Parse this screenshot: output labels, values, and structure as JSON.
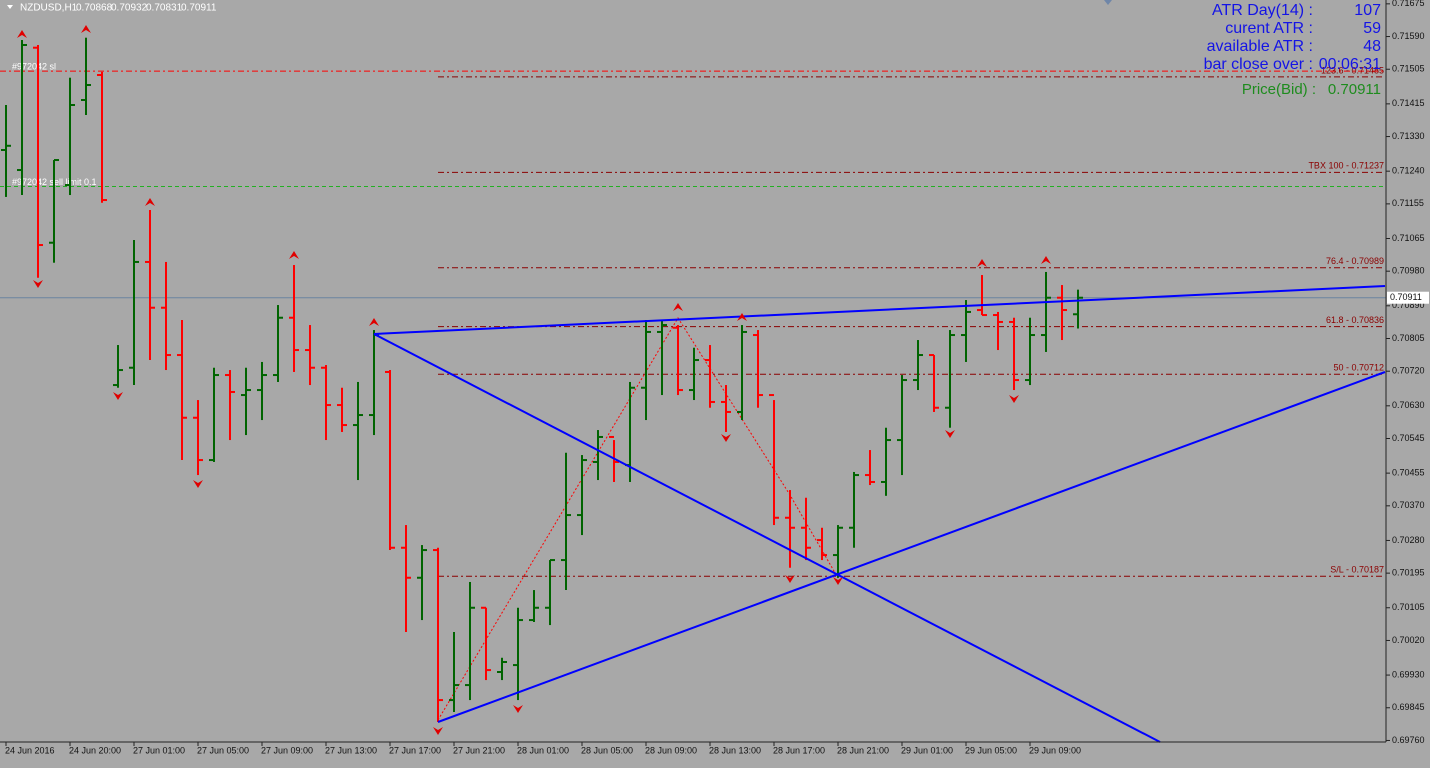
{
  "chart_data": {
    "type": "ohlc",
    "title": "NZDUSD,H1",
    "categories": [
      "24 Jun 2016",
      null,
      null,
      null,
      "24 Jun 20:00",
      null,
      null,
      null,
      "27 Jun 01:00",
      null,
      null,
      null,
      "27 Jun 05:00",
      null,
      null,
      null,
      "27 Jun 09:00",
      null,
      null,
      null,
      "27 Jun 13:00",
      null,
      null,
      null,
      "27 Jun 17:00",
      null,
      null,
      null,
      "27 Jun 21:00",
      null,
      null,
      null,
      "28 Jun 01:00",
      null,
      null,
      null,
      "28 Jun 05:00",
      null,
      null,
      null,
      "28 Jun 09:00",
      null,
      null,
      null,
      "28 Jun 13:00",
      null,
      null,
      null,
      "28 Jun 17:00",
      null,
      null,
      null,
      "28 Jun 21:00",
      null,
      null,
      null,
      "29 Jun 01:00",
      null,
      null,
      null,
      "29 Jun 05:00",
      null,
      null,
      null,
      "29 Jun 09:00",
      null,
      null,
      null
    ],
    "open": [
      0.71295,
      0.71243,
      0.71561,
      0.71054,
      0.71204,
      0.71425,
      0.7149,
      0.70684,
      0.70729,
      0.71004,
      0.70885,
      0.70762,
      0.70599,
      0.70489,
      0.7071,
      0.70658,
      0.70671,
      0.7071,
      0.70859,
      0.70775,
      0.70729,
      0.70632,
      0.7058,
      0.70606,
      0.70718,
      0.70261,
      0.70183,
      0.70255,
      0.69865,
      0.69904,
      0.70105,
      0.69938,
      0.69956,
      0.70073,
      0.70105,
      0.70229,
      0.70346,
      0.70484,
      0.70549,
      0.70476,
      0.70677,
      0.70822,
      0.70833,
      0.70671,
      0.70749,
      0.7064,
      0.70614,
      0.70814,
      0.70658,
      0.70339,
      0.70313,
      0.70281,
      0.70242,
      0.70313,
      0.7045,
      0.70432,
      0.70541,
      0.70697,
      0.70762,
      0.70625,
      0.70814,
      0.70879,
      0.70866,
      0.70848,
      0.70697,
      0.70814,
      0.70911,
      0.70868
    ],
    "high": [
      0.71412,
      0.71581,
      0.71568,
      0.71269,
      0.71483,
      0.71587,
      0.71498,
      0.70788,
      0.71061,
      0.71139,
      0.71004,
      0.70853,
      0.70645,
      0.70729,
      0.70723,
      0.70729,
      0.70744,
      0.70892,
      0.70996,
      0.7084,
      0.70736,
      0.70677,
      0.70692,
      0.70827,
      0.70723,
      0.7032,
      0.70268,
      0.70261,
      0.70042,
      0.70172,
      0.70105,
      0.69975,
      0.70105,
      0.70151,
      0.70229,
      0.70508,
      0.70502,
      0.70567,
      0.70541,
      0.70692,
      0.70853,
      0.70853,
      0.7084,
      0.70781,
      0.70788,
      0.70684,
      0.7084,
      0.70827,
      0.70645,
      0.70411,
      0.70391,
      0.70313,
      0.7032,
      0.70458,
      0.70515,
      0.70573,
      0.7071,
      0.70801,
      0.70762,
      0.70827,
      0.70905,
      0.7097,
      0.70874,
      0.70859,
      0.70859,
      0.70978,
      0.70944,
      0.70932
    ],
    "low": [
      0.71173,
      0.71178,
      0.70963,
      0.71002,
      0.71178,
      0.71386,
      0.71158,
      0.70677,
      0.70684,
      0.70749,
      0.70723,
      0.70489,
      0.7045,
      0.70484,
      0.70541,
      0.70554,
      0.70593,
      0.70692,
      0.70718,
      0.70684,
      0.70541,
      0.70562,
      0.70437,
      0.70554,
      0.70255,
      0.70042,
      0.70073,
      0.69808,
      0.69834,
      0.69865,
      0.69917,
      0.69917,
      0.69865,
      0.70068,
      0.7006,
      0.70151,
      0.70294,
      0.70437,
      0.70432,
      0.70432,
      0.70593,
      0.70658,
      0.70658,
      0.70645,
      0.70625,
      0.70562,
      0.70593,
      0.70625,
      0.7032,
      0.70209,
      0.70229,
      0.70229,
      0.70183,
      0.70261,
      0.70424,
      0.70396,
      0.7045,
      0.70671,
      0.70614,
      0.70573,
      0.70744,
      0.70866,
      0.70775,
      0.70671,
      0.70684,
      0.7077,
      0.70801,
      0.70831
    ],
    "close": [
      0.71306,
      0.71568,
      0.71048,
      0.71269,
      0.71412,
      0.71464,
      0.71165,
      0.70723,
      0.71004,
      0.70885,
      0.70762,
      0.70599,
      0.70489,
      0.7071,
      0.70666,
      0.70671,
      0.7071,
      0.70859,
      0.70775,
      0.70729,
      0.70632,
      0.7058,
      0.70606,
      0.70814,
      0.70261,
      0.70183,
      0.70255,
      0.69865,
      0.69904,
      0.70105,
      0.69943,
      0.69964,
      0.70073,
      0.70105,
      0.70229,
      0.70346,
      0.70489,
      0.70549,
      0.70484,
      0.70677,
      0.70822,
      0.7084,
      0.70671,
      0.70749,
      0.7064,
      0.70614,
      0.70822,
      0.70658,
      0.70339,
      0.70313,
      0.70261,
      0.70242,
      0.70313,
      0.7045,
      0.70432,
      0.70541,
      0.70697,
      0.70762,
      0.70625,
      0.70814,
      0.70874,
      0.70866,
      0.70848,
      0.70697,
      0.70814,
      0.70911,
      0.70879,
      0.70911
    ],
    "up_color": "#006400",
    "down_color": "#ff0000",
    "ylim": [
      0.69756,
      0.71685
    ],
    "yticks": [
      0.71675,
      {
        "value": 0.7159,
        "label": "0.71590"
      },
      0.71505,
      0.71415,
      {
        "value": 0.7133,
        "label": "0.71330"
      },
      {
        "value": 0.7124,
        "label": "0.71240"
      },
      0.71155,
      0.71065,
      {
        "value": 0.7098,
        "label": "0.70980"
      },
      {
        "value": 0.7089,
        "label": "0.70890"
      },
      0.70805,
      {
        "value": 0.7072,
        "label": "0.70720"
      },
      {
        "value": 0.7063,
        "label": "0.70630"
      },
      0.70545,
      0.70455,
      {
        "value": 0.7037,
        "label": "0.70370"
      },
      {
        "value": 0.7028,
        "label": "0.70280"
      },
      0.70195,
      0.70105,
      {
        "value": 0.7002,
        "label": "0.70020"
      },
      {
        "value": 0.6993,
        "label": "0.69930"
      },
      0.69845,
      {
        "value": 0.6976,
        "label": "0.69760"
      }
    ],
    "levels": [
      {
        "value": 0.71485,
        "label": "123.6  -  0.71485"
      },
      {
        "value": 0.71237,
        "label": "TBX 100  -  0.71237"
      },
      {
        "value": 0.70989,
        "label": "76.4  -  0.70989"
      },
      {
        "value": 0.70836,
        "label": "61.8  -  0.70836"
      },
      {
        "value": 0.70712,
        "label": "50  -  0.70712"
      },
      {
        "value": 0.70187,
        "label": "S/L  -  0.70187"
      }
    ],
    "orders": [
      {
        "value": 0.715,
        "label": "#972042 sl",
        "color": "#ff0000"
      },
      {
        "value": 0.712,
        "label": "#972042 sell limit 0.1",
        "color": "#22b022"
      }
    ],
    "info": [
      {
        "label": "ATR Day(14) :",
        "value": 107
      },
      {
        "label": "curent ATR :",
        "value": 59
      },
      {
        "label": "available ATR :",
        "value": 48
      },
      {
        "label": "bar close over :",
        "value": "00:06:31"
      }
    ],
    "bid_label": "Price(Bid) :"
  }
}
